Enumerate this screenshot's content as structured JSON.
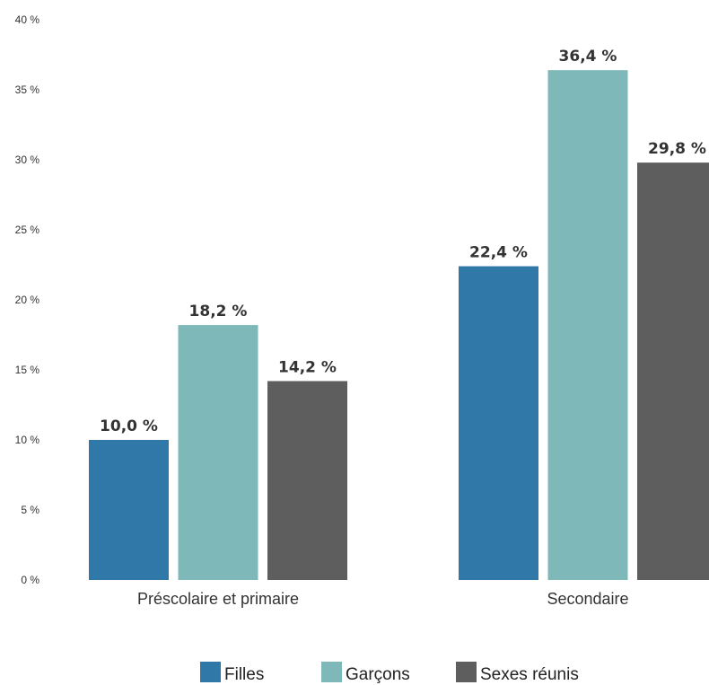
{
  "chart_data": {
    "type": "bar",
    "categories": [
      "Préscolaire et primaire",
      "Secondaire"
    ],
    "series": [
      {
        "name": "Filles",
        "color": "#2f78a8",
        "values": [
          10.0,
          22.4
        ],
        "labels": [
          "10,0 %",
          "22,4 %"
        ]
      },
      {
        "name": "Garçons",
        "color": "#7fb8b8",
        "values": [
          18.2,
          36.4
        ],
        "labels": [
          "18,2 %",
          "36,4 %"
        ]
      },
      {
        "name": "Sexes réunis",
        "color": "#5e5e5e",
        "values": [
          14.2,
          29.8
        ],
        "labels": [
          "14,2 %",
          "29,8 %"
        ]
      }
    ],
    "yticks": [
      0,
      5,
      10,
      15,
      20,
      25,
      30,
      35,
      40
    ],
    "ytick_labels": [
      "0 %",
      "5 %",
      "10 %",
      "15 %",
      "20 %",
      "25 %",
      "30 %",
      "35 %",
      "40 %"
    ],
    "ylim": [
      0,
      40
    ],
    "grid": false,
    "legend_position": "bottom"
  }
}
